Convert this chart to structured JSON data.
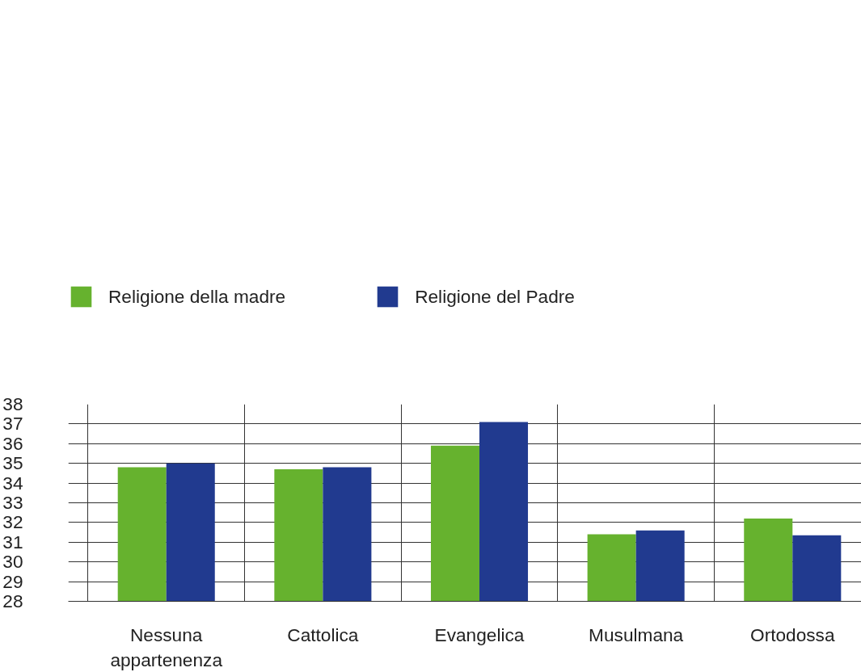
{
  "chart_data": {
    "type": "bar",
    "categories": [
      "Nessuna appartenenza",
      "Cattolica",
      "Evangelica",
      "Musulmana",
      "Ortodossa"
    ],
    "series": [
      {
        "name": "Religione della madre",
        "color": "#66b22e",
        "values": [
          34.8,
          34.7,
          35.9,
          31.4,
          32.2
        ]
      },
      {
        "name": "Religione del Padre",
        "color": "#213a8f",
        "values": [
          35.0,
          34.8,
          37.1,
          31.6,
          31.35
        ]
      }
    ],
    "ylim": [
      28,
      38
    ],
    "yticks": [
      28,
      29,
      30,
      31,
      32,
      33,
      34,
      35,
      36,
      37,
      38
    ],
    "grid": true,
    "legend": "top left"
  }
}
